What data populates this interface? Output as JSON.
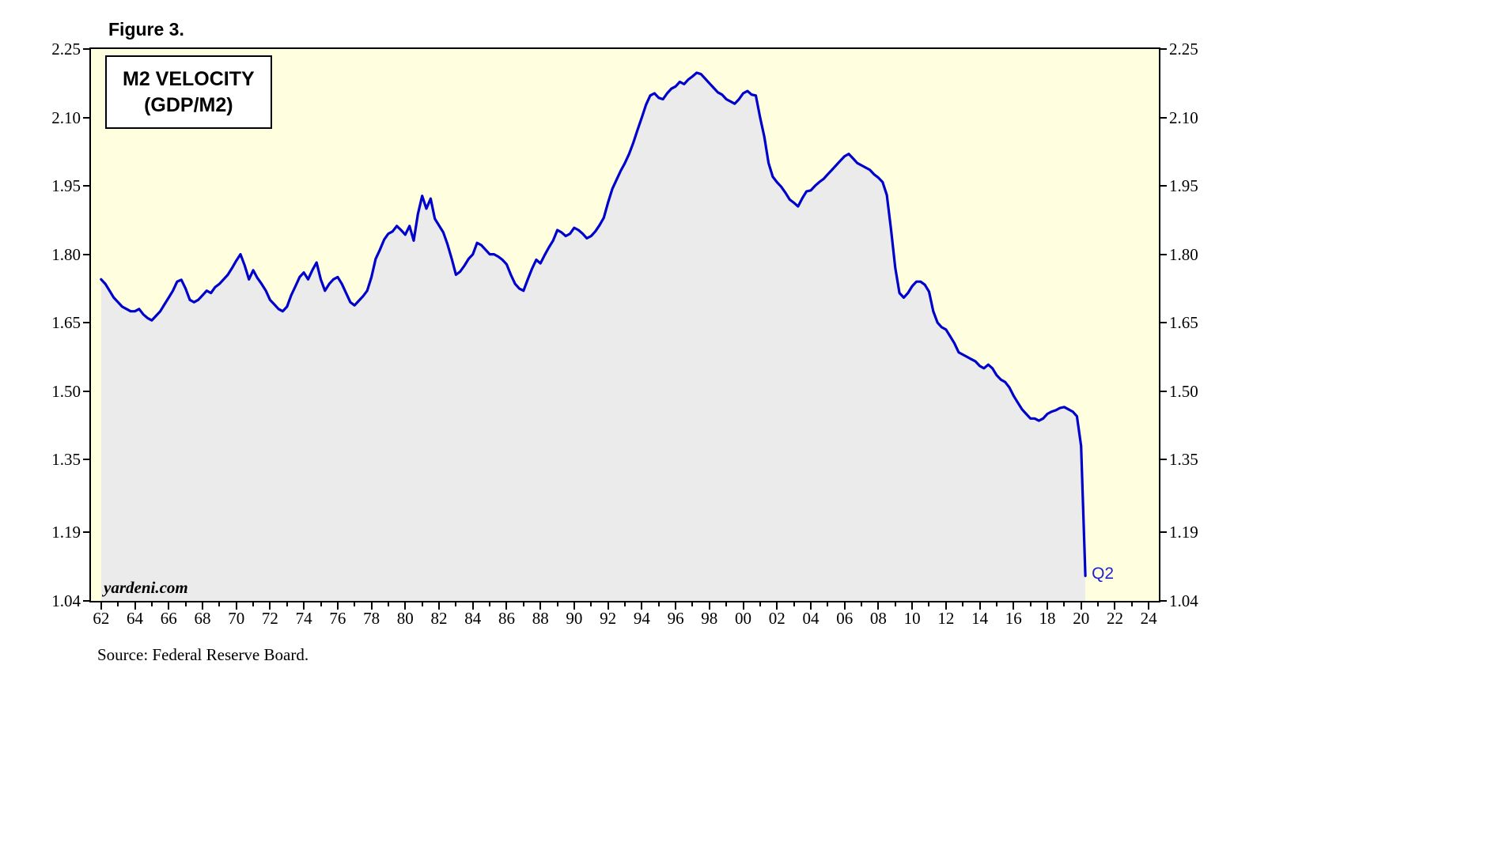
{
  "figure_label": "Figure 3.",
  "legend": {
    "line1": "M2 VELOCITY",
    "line2": "(GDP/M2)"
  },
  "watermark": "yardeni.com",
  "source_note": "Source: Federal Reserve Board.",
  "colors": {
    "line": "#0000CC",
    "plot_background": "#FFFFE0",
    "area_fill": "#EBEBEB",
    "annotation": "#2222CC",
    "border": "#000000"
  },
  "chart_data": {
    "type": "line",
    "title": "M2 VELOCITY (GDP/M2)",
    "series_name": "M2 velocity (GDP/M2), quarterly",
    "x_start": 1962.0,
    "x_step": 0.25,
    "x_end_label": "Q2",
    "xlim": [
      1961.4,
      2024.6
    ],
    "ylim": [
      1.04,
      2.25
    ],
    "grid": false,
    "legend_position": "top-left",
    "x_tick_years": [
      1962,
      1964,
      1966,
      1968,
      1970,
      1972,
      1974,
      1976,
      1978,
      1980,
      1982,
      1984,
      1986,
      1988,
      1990,
      1992,
      1994,
      1996,
      1998,
      2000,
      2002,
      2004,
      2006,
      2008,
      2010,
      2012,
      2014,
      2016,
      2018,
      2020,
      2022,
      2024
    ],
    "x_tick_labels": [
      "62",
      "64",
      "66",
      "68",
      "70",
      "72",
      "74",
      "76",
      "78",
      "80",
      "82",
      "84",
      "86",
      "88",
      "90",
      "92",
      "94",
      "96",
      "98",
      "00",
      "02",
      "04",
      "06",
      "08",
      "10",
      "12",
      "14",
      "16",
      "18",
      "20",
      "22",
      "24"
    ],
    "y_ticks": [
      1.04,
      1.19,
      1.35,
      1.5,
      1.65,
      1.8,
      1.95,
      2.1,
      2.25
    ],
    "y_tick_labels": [
      "1.04",
      "1.19",
      "1.35",
      "1.50",
      "1.65",
      "1.80",
      "1.95",
      "2.10",
      "2.25"
    ],
    "values": [
      1.745,
      1.735,
      1.72,
      1.705,
      1.695,
      1.685,
      1.68,
      1.675,
      1.675,
      1.68,
      1.668,
      1.66,
      1.655,
      1.665,
      1.675,
      1.69,
      1.705,
      1.72,
      1.74,
      1.744,
      1.725,
      1.7,
      1.695,
      1.7,
      1.71,
      1.72,
      1.715,
      1.728,
      1.735,
      1.745,
      1.755,
      1.77,
      1.786,
      1.8,
      1.775,
      1.745,
      1.765,
      1.748,
      1.735,
      1.72,
      1.7,
      1.69,
      1.68,
      1.675,
      1.685,
      1.71,
      1.73,
      1.75,
      1.76,
      1.745,
      1.765,
      1.782,
      1.745,
      1.72,
      1.735,
      1.745,
      1.75,
      1.735,
      1.715,
      1.695,
      1.688,
      1.698,
      1.708,
      1.72,
      1.75,
      1.79,
      1.81,
      1.832,
      1.845,
      1.85,
      1.862,
      1.853,
      1.843,
      1.862,
      1.83,
      1.888,
      1.928,
      1.9,
      1.922,
      1.878,
      1.863,
      1.848,
      1.822,
      1.79,
      1.755,
      1.762,
      1.775,
      1.79,
      1.8,
      1.825,
      1.82,
      1.81,
      1.8,
      1.8,
      1.795,
      1.788,
      1.778,
      1.755,
      1.735,
      1.725,
      1.72,
      1.745,
      1.768,
      1.788,
      1.78,
      1.798,
      1.815,
      1.83,
      1.853,
      1.848,
      1.84,
      1.845,
      1.858,
      1.853,
      1.845,
      1.835,
      1.84,
      1.85,
      1.864,
      1.88,
      1.913,
      1.943,
      1.963,
      1.983,
      2.0,
      2.02,
      2.045,
      2.073,
      2.1,
      2.128,
      2.148,
      2.153,
      2.143,
      2.14,
      2.153,
      2.163,
      2.168,
      2.178,
      2.173,
      2.183,
      2.19,
      2.198,
      2.195,
      2.185,
      2.175,
      2.165,
      2.155,
      2.15,
      2.14,
      2.135,
      2.13,
      2.14,
      2.153,
      2.158,
      2.15,
      2.148,
      2.1,
      2.058,
      2.0,
      1.97,
      1.958,
      1.948,
      1.935,
      1.92,
      1.913,
      1.905,
      1.923,
      1.938,
      1.94,
      1.95,
      1.958,
      1.965,
      1.975,
      1.985,
      1.995,
      2.005,
      2.015,
      2.02,
      2.01,
      2.0,
      1.995,
      1.99,
      1.985,
      1.975,
      1.968,
      1.958,
      1.93,
      1.855,
      1.77,
      1.715,
      1.705,
      1.715,
      1.73,
      1.74,
      1.74,
      1.733,
      1.718,
      1.675,
      1.65,
      1.64,
      1.635,
      1.62,
      1.605,
      1.585,
      1.58,
      1.575,
      1.57,
      1.565,
      1.555,
      1.55,
      1.558,
      1.55,
      1.535,
      1.525,
      1.52,
      1.508,
      1.49,
      1.475,
      1.46,
      1.45,
      1.44,
      1.44,
      1.435,
      1.44,
      1.45,
      1.455,
      1.458,
      1.463,
      1.465,
      1.46,
      1.455,
      1.445,
      1.38,
      1.095
    ]
  }
}
